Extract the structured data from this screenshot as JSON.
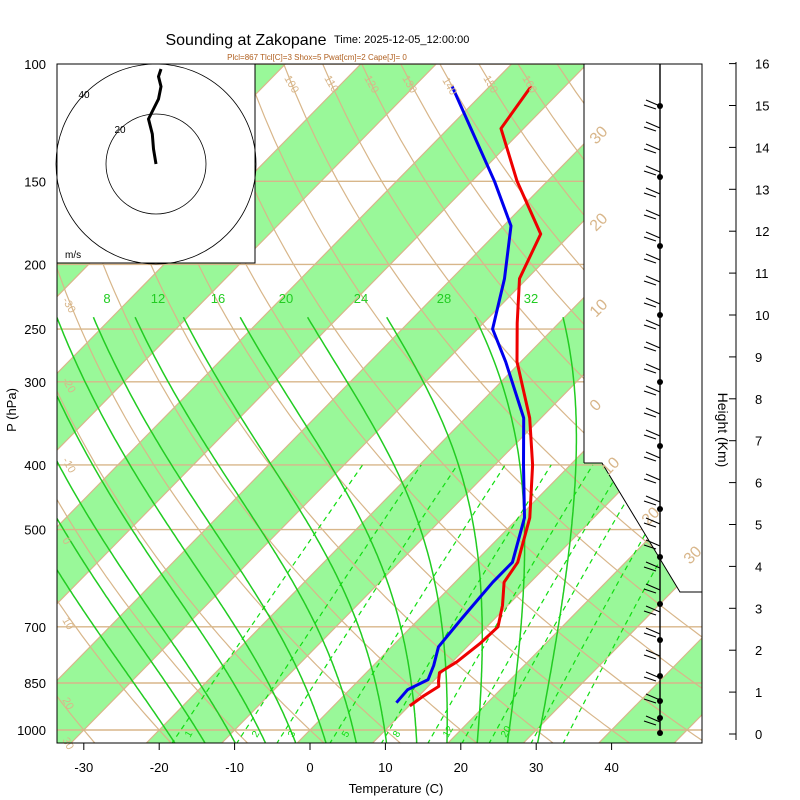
{
  "chart_data": {
    "type": "line",
    "title": "Sounding at Zakopane",
    "time_label": "Time: 2025-12-05_12:00:00",
    "subtitle": "Plcl=867 Tlcl[C]=3 Shox=5 Pwat[cm]=2 Cape[J]= 0",
    "xlabel": "Temperature (C)",
    "ylabel": "P (hPa)",
    "y2label": "Height (Km)",
    "xlim": [
      -35,
      50
    ],
    "ylim": [
      1050,
      100
    ],
    "x_ticks": [
      -30,
      -20,
      -10,
      0,
      10,
      20,
      30,
      40
    ],
    "pressure_ticks": [
      100,
      150,
      200,
      250,
      300,
      400,
      500,
      700,
      850,
      1000
    ],
    "height_ticks": [
      0,
      1,
      2,
      3,
      4,
      5,
      6,
      7,
      8,
      9,
      10,
      11,
      12,
      13,
      14,
      15,
      16
    ],
    "series": [
      {
        "name": "",
        "color": "#ee0000",
        "points": [
          {
            "p": 920,
            "t": 10.1
          },
          {
            "p": 890,
            "t": 10.6
          },
          {
            "p": 860,
            "t": 11.4
          },
          {
            "p": 845,
            "t": 10.7
          },
          {
            "p": 820,
            "t": 9.7
          },
          {
            "p": 790,
            "t": 10.6
          },
          {
            "p": 740,
            "t": 11.3
          },
          {
            "p": 700,
            "t": 11.5
          },
          {
            "p": 650,
            "t": 9.3
          },
          {
            "p": 600,
            "t": 6.5
          },
          {
            "p": 560,
            "t": 5.7
          },
          {
            "p": 480,
            "t": 1.5
          },
          {
            "p": 400,
            "t": -5.0
          },
          {
            "p": 340,
            "t": -11.5
          },
          {
            "p": 280,
            "t": -20.5
          },
          {
            "p": 245,
            "t": -25.5
          },
          {
            "p": 210,
            "t": -31.0
          },
          {
            "p": 180,
            "t": -34.0
          },
          {
            "p": 150,
            "t": -44.0
          },
          {
            "p": 125,
            "t": -53.0
          },
          {
            "p": 108,
            "t": -54.5
          }
        ]
      },
      {
        "name": "",
        "color": "#0000ee",
        "points": [
          {
            "p": 910,
            "t": 7.9
          },
          {
            "p": 870,
            "t": 7.7
          },
          {
            "p": 840,
            "t": 9.1
          },
          {
            "p": 800,
            "t": 8.0
          },
          {
            "p": 750,
            "t": 6.2
          },
          {
            "p": 680,
            "t": 5.6
          },
          {
            "p": 600,
            "t": 5.0
          },
          {
            "p": 560,
            "t": 5.0
          },
          {
            "p": 480,
            "t": 0.8
          },
          {
            "p": 400,
            "t": -6.2
          },
          {
            "p": 340,
            "t": -12.3
          },
          {
            "p": 280,
            "t": -22.0
          },
          {
            "p": 250,
            "t": -28.0
          },
          {
            "p": 210,
            "t": -33.0
          },
          {
            "p": 175,
            "t": -39.0
          },
          {
            "p": 150,
            "t": -47.0
          },
          {
            "p": 125,
            "t": -57.0
          },
          {
            "p": 108,
            "t": -65.0
          }
        ]
      }
    ],
    "dry_adiabat_labels": [
      -30,
      -20,
      -10,
      0,
      10,
      20,
      30,
      100,
      110,
      120,
      130,
      140,
      150,
      160
    ],
    "moist_adiabat_labels": [
      8,
      12,
      16,
      20,
      24,
      28,
      32
    ],
    "mixing_ratio_labels": [
      1,
      2,
      3,
      5,
      8,
      12,
      20
    ],
    "hodograph": {
      "unit_label": "m/s",
      "ring_labels": [
        "20",
        "40"
      ],
      "trace": [
        [
          0,
          0
        ],
        [
          -1,
          6
        ],
        [
          -1.5,
          12
        ],
        [
          -3,
          18
        ],
        [
          -1,
          22
        ],
        [
          1,
          26
        ],
        [
          2,
          31
        ],
        [
          1,
          35
        ],
        [
          2,
          38
        ]
      ]
    },
    "colors": {
      "temperature": "#ee0000",
      "dewpoint": "#0000ee",
      "isotherm": "#d8b68a",
      "green_band": "#99f899",
      "moist_adiabat": "#22cc22",
      "mixing_ratio": "#11dd11"
    }
  }
}
